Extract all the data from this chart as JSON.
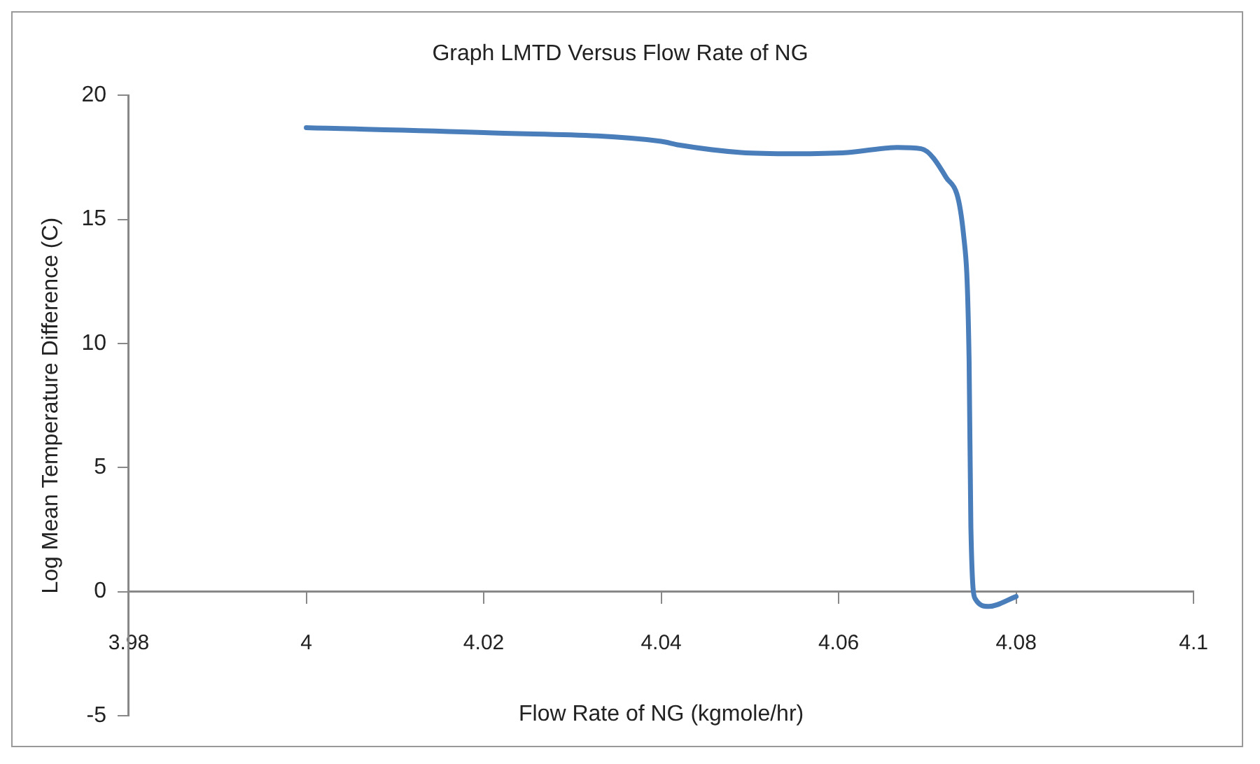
{
  "chart_data": {
    "type": "line",
    "title": "Graph LMTD Versus Flow Rate of NG",
    "xlabel": "Flow Rate of NG (kgmole/hr)",
    "ylabel": "Log Mean Temperature Difference (C)",
    "x": [
      4.0,
      4.02,
      4.04,
      4.042,
      4.049,
      4.055,
      4.061,
      4.0666,
      4.0693,
      4.0721,
      4.0741,
      4.0747,
      4.0749,
      4.0754,
      4.0769,
      4.08
    ],
    "series": [
      {
        "color": "#4a7ebb",
        "values": [
          18.7,
          18.5,
          18.15,
          18.0,
          17.7,
          17.65,
          17.7,
          17.9,
          17.85,
          16.7,
          14.3,
          9.3,
          2.6,
          -0.3,
          -0.6,
          -0.2
        ]
      }
    ],
    "xlim": [
      3.98,
      4.1
    ],
    "xticks": [
      3.98,
      4,
      4.02,
      4.04,
      4.06,
      4.08,
      4.1
    ],
    "ylim": [
      -5,
      20
    ],
    "yticks": [
      -5,
      0,
      5,
      10,
      15,
      20
    ],
    "grid": false,
    "legend": false,
    "marker": "none",
    "line_style": "solid"
  }
}
